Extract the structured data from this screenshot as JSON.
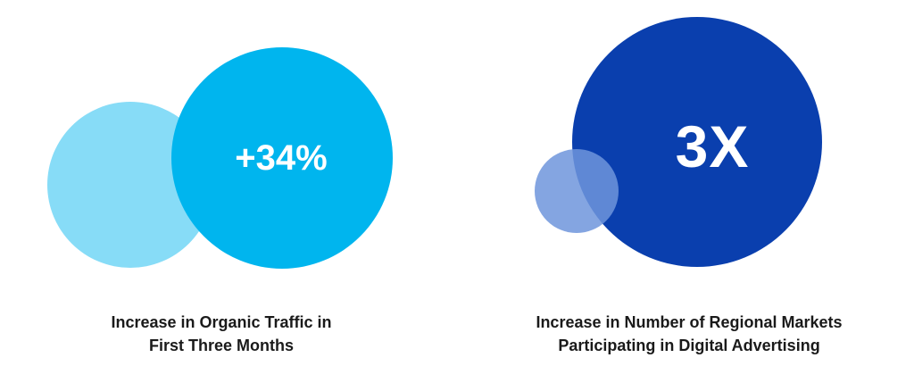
{
  "stats": [
    {
      "value": "+34%",
      "caption_line1": "Increase in Organic Traffic in",
      "caption_line2": "First Three Months"
    },
    {
      "value": "3X",
      "caption_line1": "Increase in Number of Regional Markets",
      "caption_line2": "Participating in Digital Advertising"
    }
  ],
  "colors": {
    "light_blue": "#88d7f5",
    "bright_blue": "#00b5ee",
    "pale_indigo": "#7f9fdf",
    "deep_blue": "#0a3fae",
    "caption_text": "#1a1a1a"
  }
}
